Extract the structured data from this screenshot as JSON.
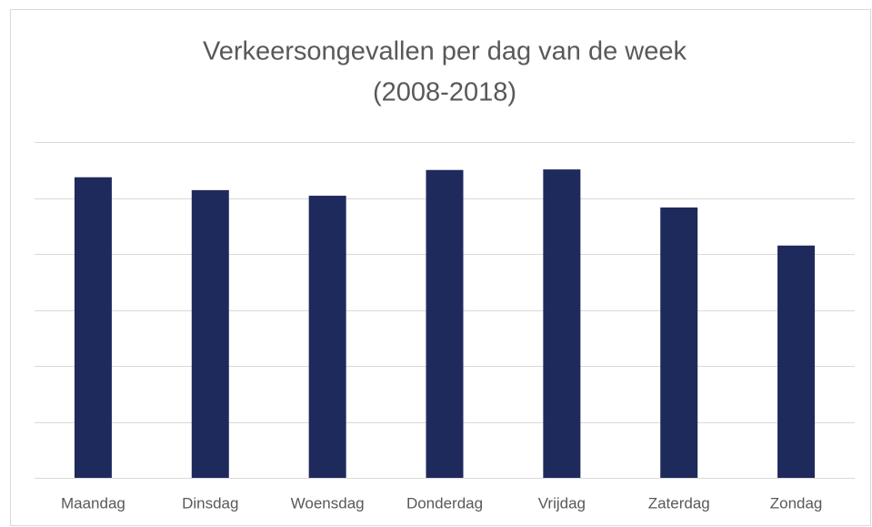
{
  "chart_data": {
    "type": "bar",
    "title": [
      "Verkeersongevallen per dag van de week",
      "(2008-2018)"
    ],
    "categories": [
      "Maandag",
      "Dinsdag",
      "Woensdag",
      "Donderdag",
      "Vrijdag",
      "Zaterdag",
      "Zondag"
    ],
    "values": [
      5.37,
      5.14,
      5.04,
      5.5,
      5.51,
      4.83,
      4.15
    ],
    "color": "#1f2a5c",
    "ylim": [
      0,
      6
    ],
    "yticks": [
      0,
      1,
      2,
      3,
      4,
      5,
      6
    ],
    "grid": true
  }
}
